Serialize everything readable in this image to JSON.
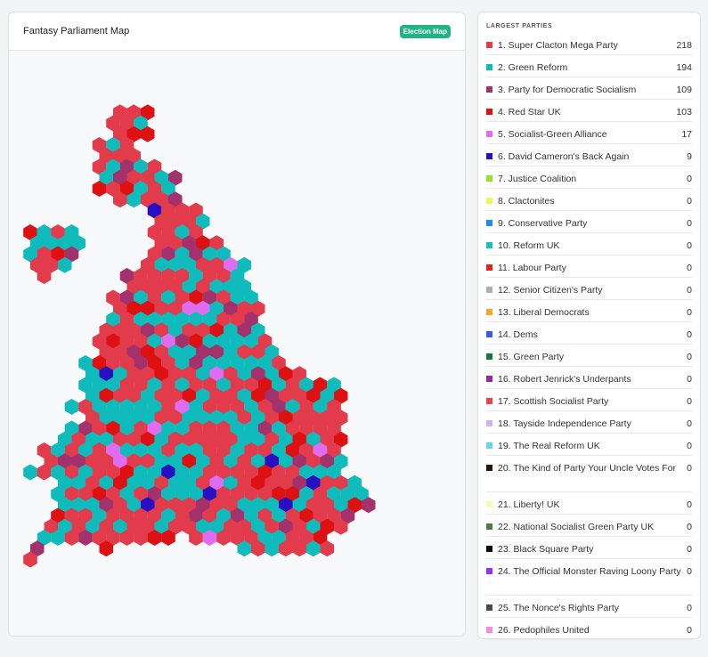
{
  "map_card": {
    "title": "Fantasy Parliament Map",
    "badge": "Election Map"
  },
  "sidebar": {
    "heading": "LARGEST PARTIES",
    "parties": [
      {
        "label": "1. Super Clacton Mega Party",
        "seats": "218",
        "color": "#e23b4b"
      },
      {
        "label": "2. Green Reform",
        "seats": "194",
        "color": "#10bbbb"
      },
      {
        "label": "3. Party for Democratic Socialism",
        "seats": "109",
        "color": "#a3326c"
      },
      {
        "label": "4. Red Star UK",
        "seats": "103",
        "color": "#dd1111"
      },
      {
        "label": "5. Socialist-Green Alliance",
        "seats": "17",
        "color": "#e06cf2"
      },
      {
        "label": "6. David Cameron's Back Again",
        "seats": "9",
        "color": "#2a0fc2"
      },
      {
        "label": "7. Justice Coalition",
        "seats": "0",
        "color": "#98e022"
      },
      {
        "label": "8. Clactonites",
        "seats": "0",
        "color": "#f2f25a"
      },
      {
        "label": "9. Conservative Party",
        "seats": "0",
        "color": "#1f8ee0"
      },
      {
        "label": "10. Reform UK",
        "seats": "0",
        "color": "#18bcc4"
      },
      {
        "label": "11. Labour Party",
        "seats": "0",
        "color": "#e22418"
      },
      {
        "label": "12. Senior Citizen's Party",
        "seats": "0",
        "color": "#b0b0b0"
      },
      {
        "label": "13. Liberal Democrats",
        "seats": "0",
        "color": "#f5a623"
      },
      {
        "label": "14. Dems",
        "seats": "0",
        "color": "#3a5ce0"
      },
      {
        "label": "15. Green Party",
        "seats": "0",
        "color": "#137a38"
      },
      {
        "label": "16. Robert Jenrick's Underpants",
        "seats": "0",
        "color": "#9b2799"
      },
      {
        "label": "17. Scottish Socialist Party",
        "seats": "0",
        "color": "#e8414a"
      },
      {
        "label": "18. Tayside Independence Party",
        "seats": "0",
        "color": "#d2b2f0"
      },
      {
        "label": "19. The Real Reform UK",
        "seats": "0",
        "color": "#5fd8ee"
      },
      {
        "label": "20. The Kind of Party Your Uncle Votes For",
        "seats": "0",
        "color": "#2a1405"
      },
      {
        "label": "21. Liberty! UK",
        "seats": "0",
        "color": "#f4fbb2"
      },
      {
        "label": "22. National Socialist Green Party UK",
        "seats": "0",
        "color": "#4e7a3d"
      },
      {
        "label": "23. Black Square Party",
        "seats": "0",
        "color": "#0a0a0a"
      },
      {
        "label": "24. The Official Monster Raving Loony Party",
        "seats": "0",
        "color": "#9a2ef2"
      },
      {
        "label": "25. The Nonce's Rights Party",
        "seats": "0",
        "color": "#4a4a4a"
      },
      {
        "label": "26. Pedophiles United",
        "seats": "0",
        "color": "#f08fe0"
      }
    ]
  }
}
